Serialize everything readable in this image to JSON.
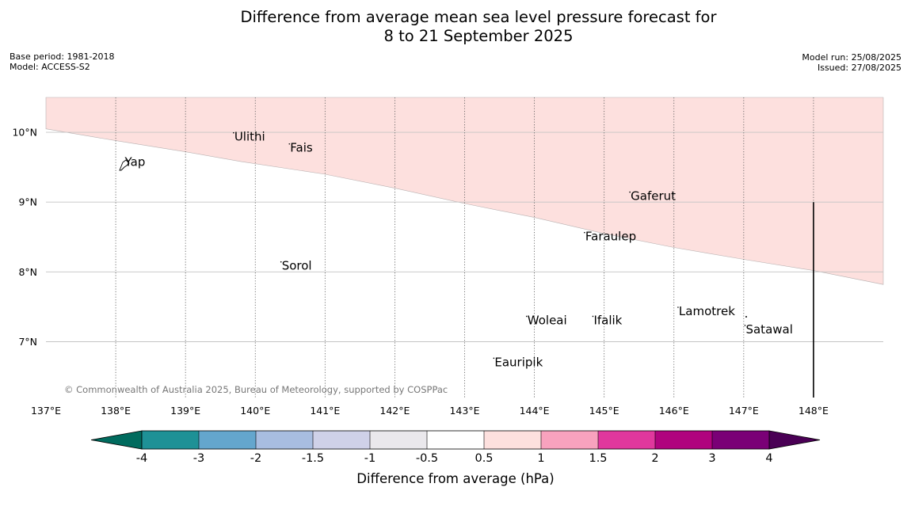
{
  "title": {
    "line1": "Difference from average mean sea level pressure forecast for",
    "line2": "8 to 21 September 2025"
  },
  "meta": {
    "base_period": "Base period: 1981-2018",
    "model": "Model: ACCESS-S2",
    "model_run": "Model run: 25/08/2025",
    "issued": "Issued: 27/08/2025"
  },
  "copyright": "© Commonwealth of Australia 2025, Bureau of Meteorology, supported by COSPPac",
  "map": {
    "lon_range": [
      137,
      149
    ],
    "lat_range": [
      6.2,
      10.5
    ],
    "lon_ticks": [
      {
        "value": 137,
        "label": "137°E"
      },
      {
        "value": 138,
        "label": "138°E"
      },
      {
        "value": 139,
        "label": "139°E"
      },
      {
        "value": 140,
        "label": "140°E"
      },
      {
        "value": 141,
        "label": "141°E"
      },
      {
        "value": 142,
        "label": "142°E"
      },
      {
        "value": 143,
        "label": "143°E"
      },
      {
        "value": 144,
        "label": "144°E"
      },
      {
        "value": 145,
        "label": "145°E"
      },
      {
        "value": 146,
        "label": "146°E"
      },
      {
        "value": 147,
        "label": "147°E"
      },
      {
        "value": 148,
        "label": "148°E"
      }
    ],
    "lat_ticks": [
      {
        "value": 10,
        "label": "10°N"
      },
      {
        "value": 9,
        "label": "9°N"
      },
      {
        "value": 8,
        "label": "8°N"
      },
      {
        "value": 7,
        "label": "7°N"
      }
    ],
    "anomaly_region": {
      "category": "0.5 to 1",
      "color": "#fde0de",
      "southern_boundary": [
        [
          137.0,
          10.05
        ],
        [
          138.0,
          9.88
        ],
        [
          139.0,
          9.72
        ],
        [
          139.8,
          9.58
        ],
        [
          141.0,
          9.4
        ],
        [
          142.0,
          9.2
        ],
        [
          143.0,
          8.98
        ],
        [
          144.0,
          8.78
        ],
        [
          145.0,
          8.55
        ],
        [
          146.0,
          8.35
        ],
        [
          147.0,
          8.18
        ],
        [
          148.0,
          8.02
        ],
        [
          149.0,
          7.82
        ]
      ]
    },
    "places": [
      {
        "name": "Yap",
        "lon": 138.13,
        "lat": 9.52
      },
      {
        "name": "Ulithi",
        "lon": 139.7,
        "lat": 9.88
      },
      {
        "name": "Fais",
        "lon": 140.5,
        "lat": 9.72
      },
      {
        "name": "Gaferut",
        "lon": 145.38,
        "lat": 9.03
      },
      {
        "name": "Faraulep",
        "lon": 144.73,
        "lat": 8.45
      },
      {
        "name": "Sorol",
        "lon": 140.38,
        "lat": 8.03
      },
      {
        "name": "Woleai",
        "lon": 143.9,
        "lat": 7.25
      },
      {
        "name": "Ifalik",
        "lon": 144.85,
        "lat": 7.25
      },
      {
        "name": "Lamotrek",
        "lon": 146.07,
        "lat": 7.38
      },
      {
        "name": "Satawal",
        "lon": 147.03,
        "lat": 7.12
      },
      {
        "name": "Eauripik",
        "lon": 143.43,
        "lat": 6.65
      }
    ],
    "boundary_line": {
      "lon": 148.0,
      "lat_top": 9.0
    }
  },
  "colorbar": {
    "label": "Difference from average (hPa)",
    "ticks": [
      "-4",
      "-3",
      "-2",
      "-1.5",
      "-1",
      "-0.5",
      "0.5",
      "1",
      "1.5",
      "2",
      "3",
      "4"
    ],
    "under_color": "#006b5e",
    "over_color": "#4a0055",
    "colors": [
      "#1e9196",
      "#64a6cd",
      "#a8bde0",
      "#cfd1e8",
      "#eae8ec",
      "#ffffff",
      "#fde0de",
      "#f8a2be",
      "#e0379d",
      "#b0037e",
      "#7a0076"
    ]
  }
}
